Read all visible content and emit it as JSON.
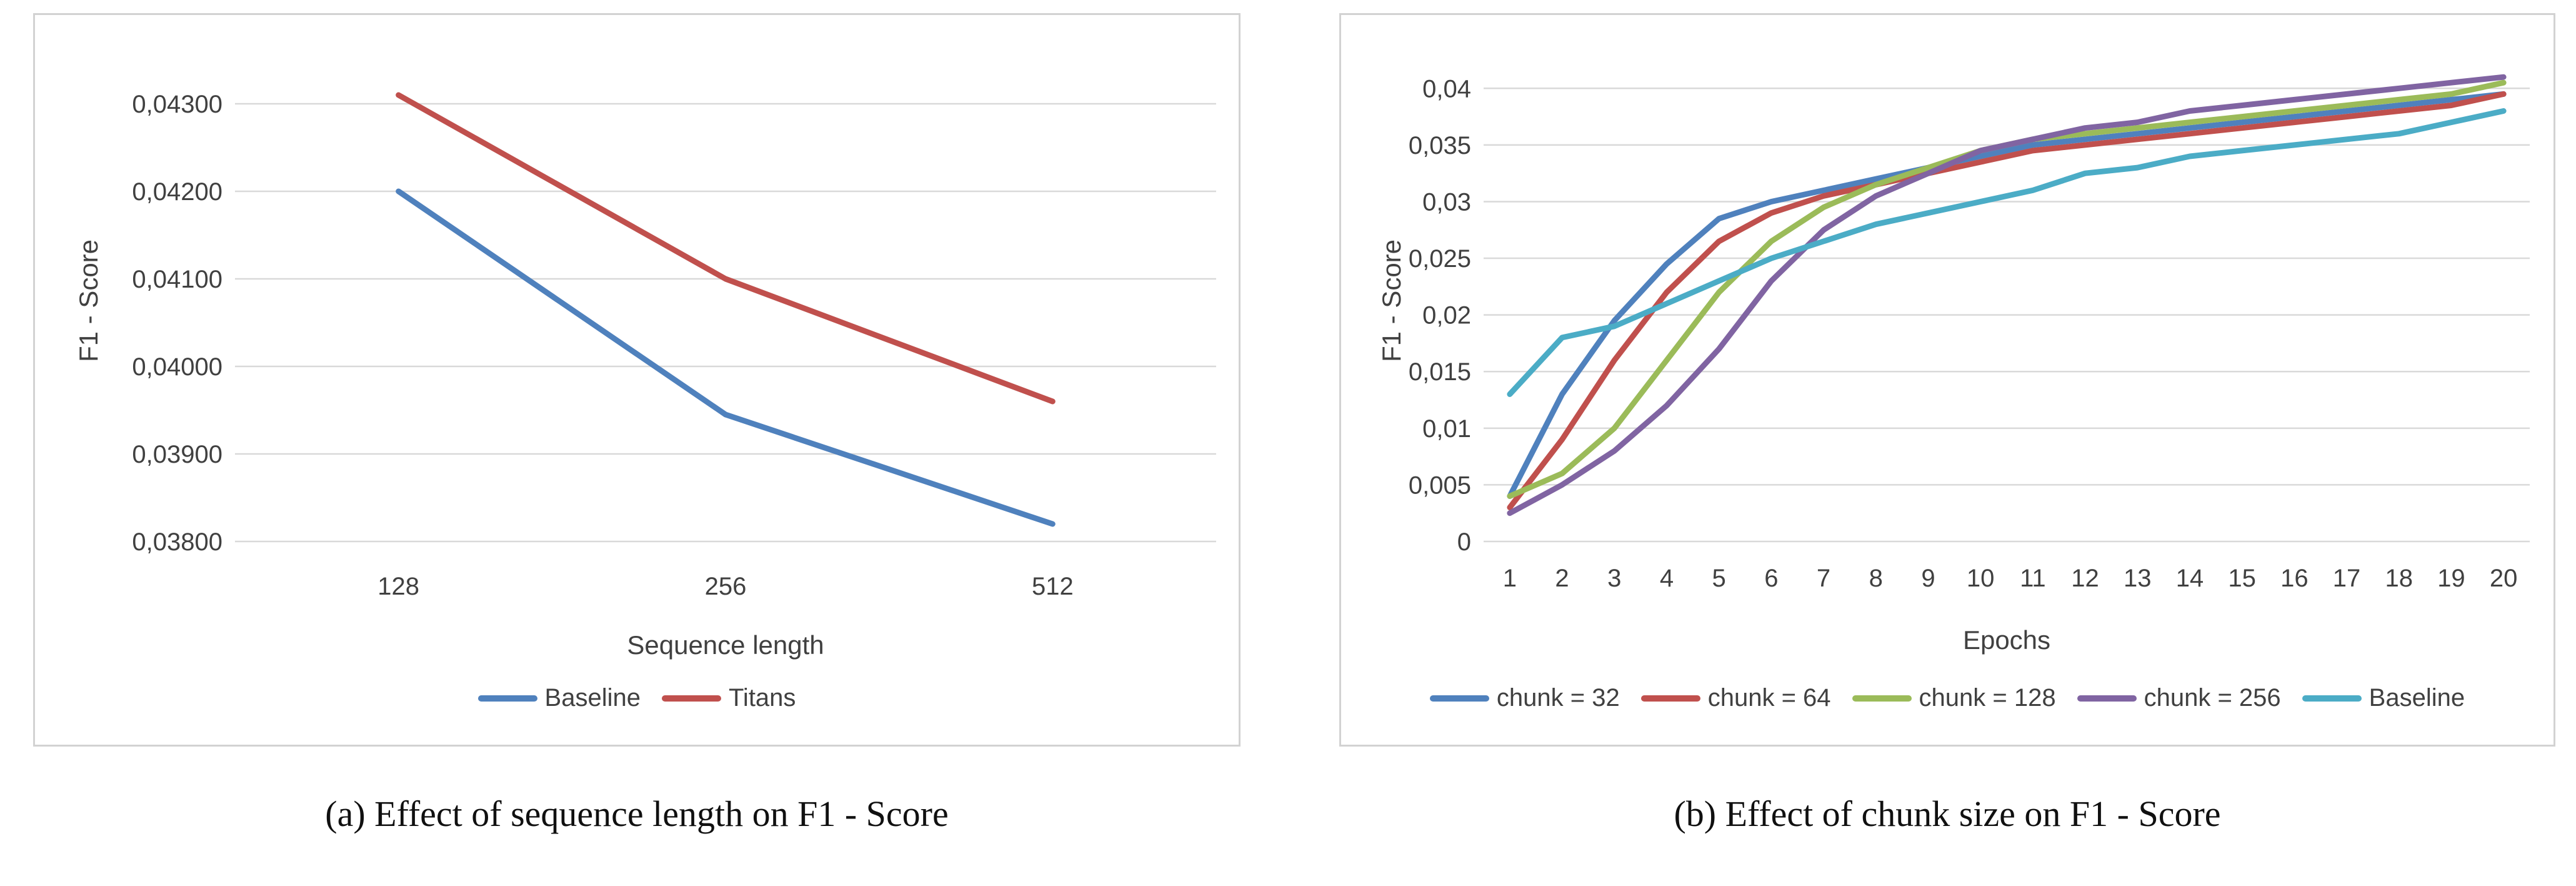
{
  "figure": {
    "caption_a": "(a) Effect of sequence length on F1 - Score",
    "caption_b": "(b) Effect of chunk size on F1 - Score"
  },
  "colors": {
    "blue": "#4F81BD",
    "red": "#C0504D",
    "green": "#9BBB59",
    "purple": "#8064A2",
    "teal": "#4BACC6",
    "gridline": "#D9D9D9",
    "axis_text": "#404040",
    "panel_border": "#D2D2D2"
  },
  "chart_data": [
    {
      "type": "line",
      "title": "",
      "xlabel": "Sequence length",
      "ylabel": "F1 - Score",
      "grid": "horizontal",
      "legend_position": "bottom",
      "categories": [
        "128",
        "256",
        "512"
      ],
      "ylim": [
        0.038,
        0.0435
      ],
      "yticks": [
        {
          "value": 0.043,
          "label": "0,04300"
        },
        {
          "value": 0.042,
          "label": "0,04200"
        },
        {
          "value": 0.041,
          "label": "0,04100"
        },
        {
          "value": 0.04,
          "label": "0,04000"
        },
        {
          "value": 0.039,
          "label": "0,03900"
        },
        {
          "value": 0.038,
          "label": "0,03800"
        }
      ],
      "series": [
        {
          "name": "Baseline",
          "color": "#4F81BD",
          "values": [
            0.042,
            0.03945,
            0.0382
          ]
        },
        {
          "name": "Titans",
          "color": "#C0504D",
          "values": [
            0.0431,
            0.041,
            0.0396
          ]
        }
      ]
    },
    {
      "type": "line",
      "title": "",
      "xlabel": "Epochs",
      "ylabel": "F1 - Score",
      "grid": "horizontal",
      "legend_position": "bottom",
      "categories": [
        "1",
        "2",
        "3",
        "4",
        "5",
        "6",
        "7",
        "8",
        "9",
        "10",
        "11",
        "12",
        "13",
        "14",
        "15",
        "16",
        "17",
        "18",
        "19",
        "20"
      ],
      "ylim": [
        0,
        0.0425
      ],
      "yticks": [
        {
          "value": 0.04,
          "label": "0,04"
        },
        {
          "value": 0.035,
          "label": "0,035"
        },
        {
          "value": 0.03,
          "label": "0,03"
        },
        {
          "value": 0.025,
          "label": "0,025"
        },
        {
          "value": 0.02,
          "label": "0,02"
        },
        {
          "value": 0.015,
          "label": "0,015"
        },
        {
          "value": 0.01,
          "label": "0,01"
        },
        {
          "value": 0.005,
          "label": "0,005"
        },
        {
          "value": 0.0,
          "label": "0"
        }
      ],
      "series": [
        {
          "name": "chunk = 32",
          "color": "#4F81BD",
          "values": [
            0.004,
            0.013,
            0.0195,
            0.0245,
            0.0285,
            0.03,
            0.031,
            0.032,
            0.033,
            0.034,
            0.035,
            0.0355,
            0.036,
            0.0365,
            0.037,
            0.0375,
            0.038,
            0.0385,
            0.039,
            0.0395
          ]
        },
        {
          "name": "chunk = 64",
          "color": "#C0504D",
          "values": [
            0.003,
            0.009,
            0.016,
            0.022,
            0.0265,
            0.029,
            0.0305,
            0.0315,
            0.0325,
            0.0335,
            0.0345,
            0.035,
            0.0355,
            0.036,
            0.0365,
            0.037,
            0.0375,
            0.038,
            0.0385,
            0.0395
          ]
        },
        {
          "name": "chunk = 128",
          "color": "#9BBB59",
          "values": [
            0.004,
            0.006,
            0.01,
            0.016,
            0.022,
            0.0265,
            0.0295,
            0.0315,
            0.033,
            0.0345,
            0.0355,
            0.036,
            0.0365,
            0.037,
            0.0375,
            0.038,
            0.0385,
            0.039,
            0.0395,
            0.0405
          ]
        },
        {
          "name": "chunk = 256",
          "color": "#8064A2",
          "values": [
            0.0025,
            0.005,
            0.008,
            0.012,
            0.017,
            0.023,
            0.0275,
            0.0305,
            0.0325,
            0.0345,
            0.0355,
            0.0365,
            0.037,
            0.038,
            0.0385,
            0.039,
            0.0395,
            0.04,
            0.0405,
            0.041
          ]
        },
        {
          "name": "Baseline",
          "color": "#4BACC6",
          "values": [
            0.013,
            0.018,
            0.019,
            0.021,
            0.023,
            0.025,
            0.0265,
            0.028,
            0.029,
            0.03,
            0.031,
            0.0325,
            0.033,
            0.034,
            0.0345,
            0.035,
            0.0355,
            0.036,
            0.037,
            0.038
          ]
        }
      ]
    }
  ]
}
